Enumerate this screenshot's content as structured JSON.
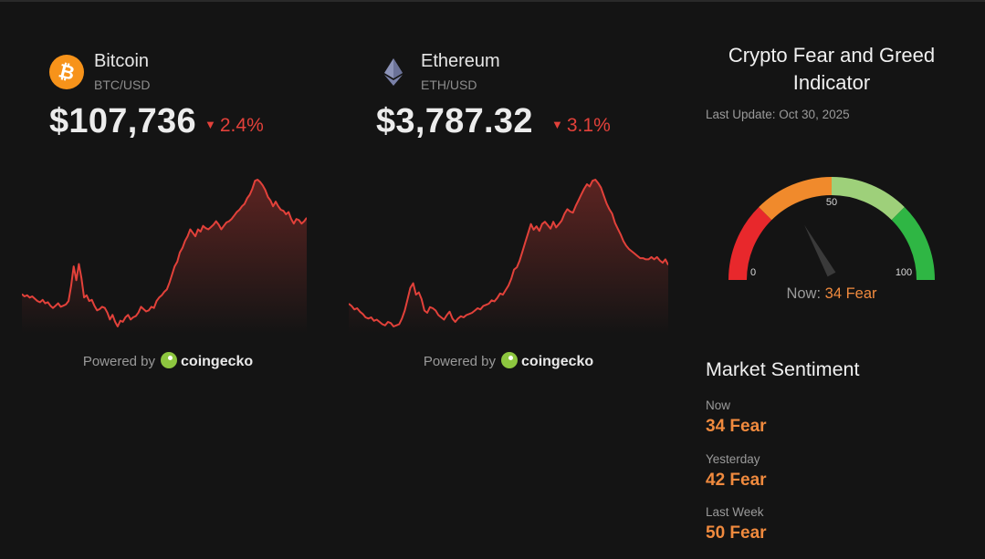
{
  "colors": {
    "background": "#141414",
    "down": "#e2413a",
    "fear": "#f08a3e",
    "bitcoin": "#f7931a",
    "coingecko": "#8dc63f"
  },
  "coins": [
    {
      "name": "Bitcoin",
      "pair": "BTC/USD",
      "price": "$107,736",
      "change": "2.4%",
      "direction": "down",
      "icon": "bitcoin-icon",
      "powered_by": "Powered by",
      "provider": "coingecko",
      "sparkline": [
        68,
        66,
        67,
        65,
        66,
        64,
        62,
        61,
        63,
        60,
        61,
        58,
        56,
        58,
        60,
        57,
        58,
        59,
        62,
        75,
        92,
        80,
        94,
        82,
        65,
        67,
        62,
        63,
        58,
        54,
        55,
        57,
        56,
        52,
        46,
        50,
        44,
        40,
        45,
        44,
        48,
        50,
        46,
        48,
        49,
        52,
        57,
        55,
        53,
        54,
        57,
        56,
        62,
        65,
        67,
        70,
        72,
        78,
        85,
        92,
        96,
        104,
        108,
        114,
        118,
        124,
        121,
        118,
        124,
        122,
        127,
        125,
        124,
        126,
        128,
        131,
        128,
        124,
        127,
        130,
        131,
        133,
        136,
        139,
        141,
        144,
        146,
        151,
        154,
        159,
        166,
        167,
        165,
        162,
        158,
        152,
        149,
        144,
        148,
        144,
        141,
        140,
        137,
        139,
        133,
        129,
        133,
        132,
        129,
        131,
        134
      ]
    },
    {
      "name": "Ethereum",
      "pair": "ETH/USD",
      "price": "$3,787.32",
      "change": "3.1%",
      "direction": "down",
      "icon": "ethereum-icon",
      "powered_by": "Powered by",
      "provider": "coingecko",
      "sparkline": [
        80,
        78,
        75,
        76,
        73,
        71,
        68,
        67,
        68,
        65,
        66,
        64,
        62,
        61,
        64,
        63,
        60,
        61,
        62,
        67,
        74,
        84,
        94,
        98,
        88,
        90,
        84,
        74,
        72,
        77,
        76,
        74,
        70,
        68,
        66,
        70,
        73,
        67,
        64,
        67,
        69,
        68,
        70,
        71,
        72,
        74,
        76,
        75,
        78,
        79,
        80,
        83,
        82,
        85,
        89,
        88,
        92,
        96,
        102,
        110,
        112,
        118,
        126,
        134,
        142,
        150,
        145,
        148,
        144,
        150,
        152,
        149,
        146,
        152,
        147,
        150,
        153,
        159,
        163,
        161,
        160,
        166,
        171,
        176,
        181,
        185,
        183,
        188,
        189,
        186,
        182,
        175,
        168,
        163,
        159,
        151,
        146,
        141,
        135,
        131,
        128,
        126,
        124,
        122,
        120,
        120,
        119,
        119,
        121,
        119,
        121,
        118,
        116,
        119,
        114
      ]
    }
  ],
  "fear_greed": {
    "title": "Crypto Fear and Greed Indicator",
    "last_update": "Last Update: Oct 30, 2025",
    "scale_min": "0",
    "scale_mid": "50",
    "scale_max": "100",
    "now_label": "Now:",
    "now_value": "34 Fear",
    "value": 34,
    "segment_colors": [
      "#e8282c",
      "#f08a2c",
      "#9ed07a",
      "#2fb644"
    ]
  },
  "market_sentiment": {
    "title": "Market Sentiment",
    "items": [
      {
        "label": "Now",
        "value": "34 Fear"
      },
      {
        "label": "Yesterday",
        "value": "42 Fear"
      },
      {
        "label": "Last Week",
        "value": "50 Fear"
      }
    ]
  }
}
